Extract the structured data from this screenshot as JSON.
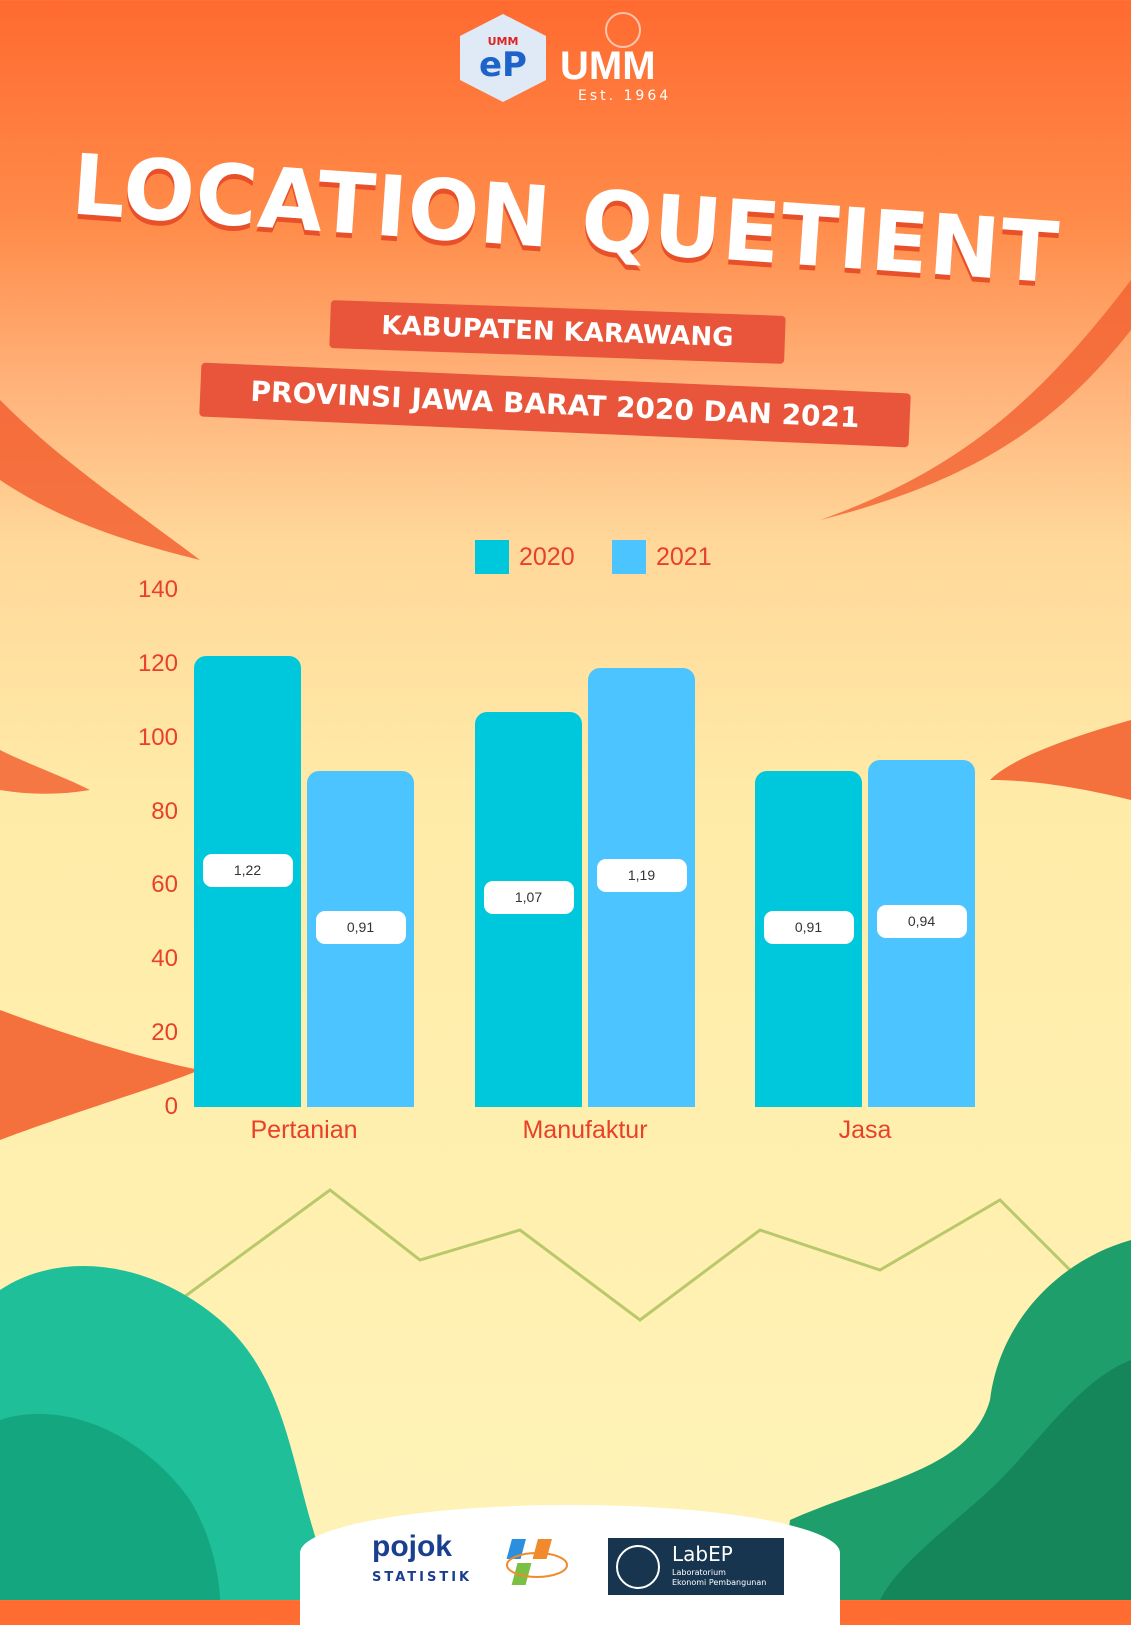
{
  "header": {
    "logo_ep_text": "UMM",
    "logo_ep_mark": "eP",
    "logo_umm": "UMM",
    "logo_umm_est": "Est. 1964"
  },
  "title": "LOCATION QUETIENT",
  "subtitle_1": "KABUPATEN KARAWANG",
  "subtitle_2": "PROVINSI JAWA BARAT 2020 DAN 2021",
  "colors": {
    "series_2020": "#00C8DC",
    "series_2021": "#4CC4FF",
    "text_accent": "#E8402A",
    "ribbon": "#E8553A"
  },
  "chart_data": {
    "type": "bar",
    "categories": [
      "Pertanian",
      "Manufaktur",
      "Jasa"
    ],
    "series": [
      {
        "name": "2020",
        "values": [
          122,
          107,
          91
        ],
        "labels": [
          "1,22",
          "1,07",
          "0,91"
        ]
      },
      {
        "name": "2021",
        "values": [
          91,
          119,
          94
        ],
        "labels": [
          "0,91",
          "1,19",
          "0,94"
        ]
      }
    ],
    "yticks": [
      "0",
      "20",
      "40",
      "60",
      "80",
      "100",
      "120",
      "140"
    ],
    "ylim": [
      0,
      140
    ],
    "grid": false,
    "legend": "top-center"
  },
  "footer": {
    "pojok": "pojok",
    "statistik": "STATISTIK",
    "lab_title": "LabEP",
    "lab_sub_1": "Laboratorium",
    "lab_sub_2": "Ekonomi Pembangunan"
  }
}
